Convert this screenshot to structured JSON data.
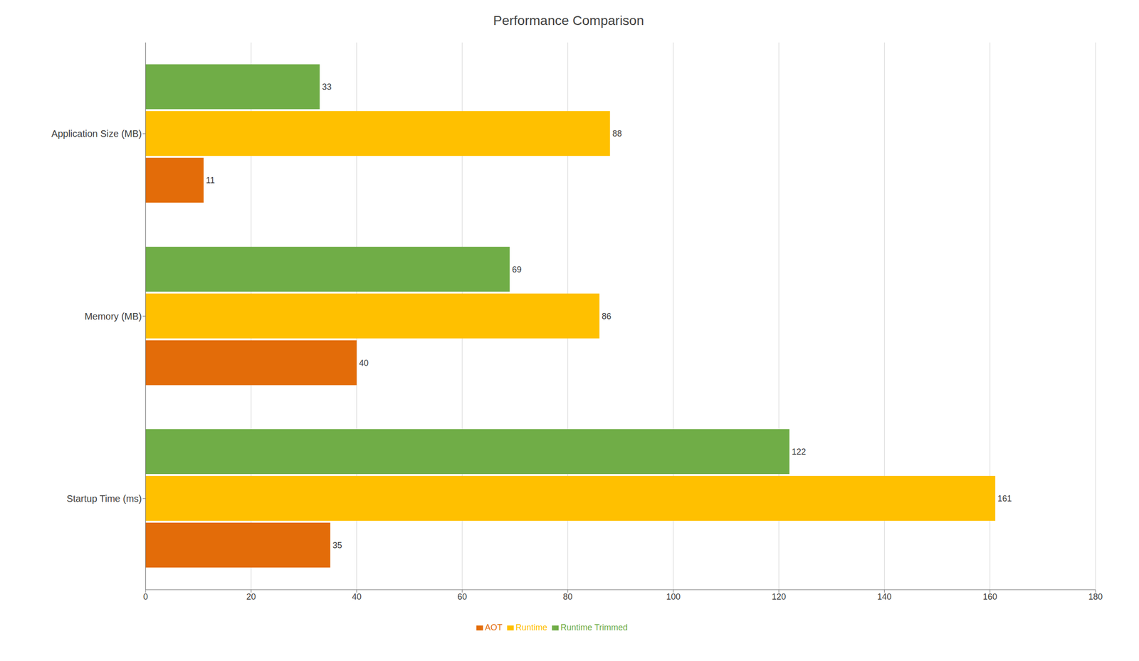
{
  "chart_data": {
    "type": "bar",
    "orientation": "horizontal",
    "title": "Performance Comparison",
    "categories": [
      "Startup Time (ms)",
      "Memory (MB)",
      "Application Size (MB)"
    ],
    "series": [
      {
        "name": "Runtime Trimmed",
        "color": "#70AD47",
        "values": [
          122,
          69,
          33
        ]
      },
      {
        "name": "Runtime",
        "color": "#FFC000",
        "values": [
          161,
          86,
          88
        ]
      },
      {
        "name": "AOT",
        "color": "#E36C09",
        "values": [
          35,
          40,
          11
        ]
      }
    ],
    "xlim": [
      0,
      180
    ],
    "xticks": [
      0,
      20,
      40,
      60,
      80,
      100,
      120,
      140,
      160,
      180
    ],
    "grid": true,
    "legend": "bottom",
    "data_labels": true
  }
}
